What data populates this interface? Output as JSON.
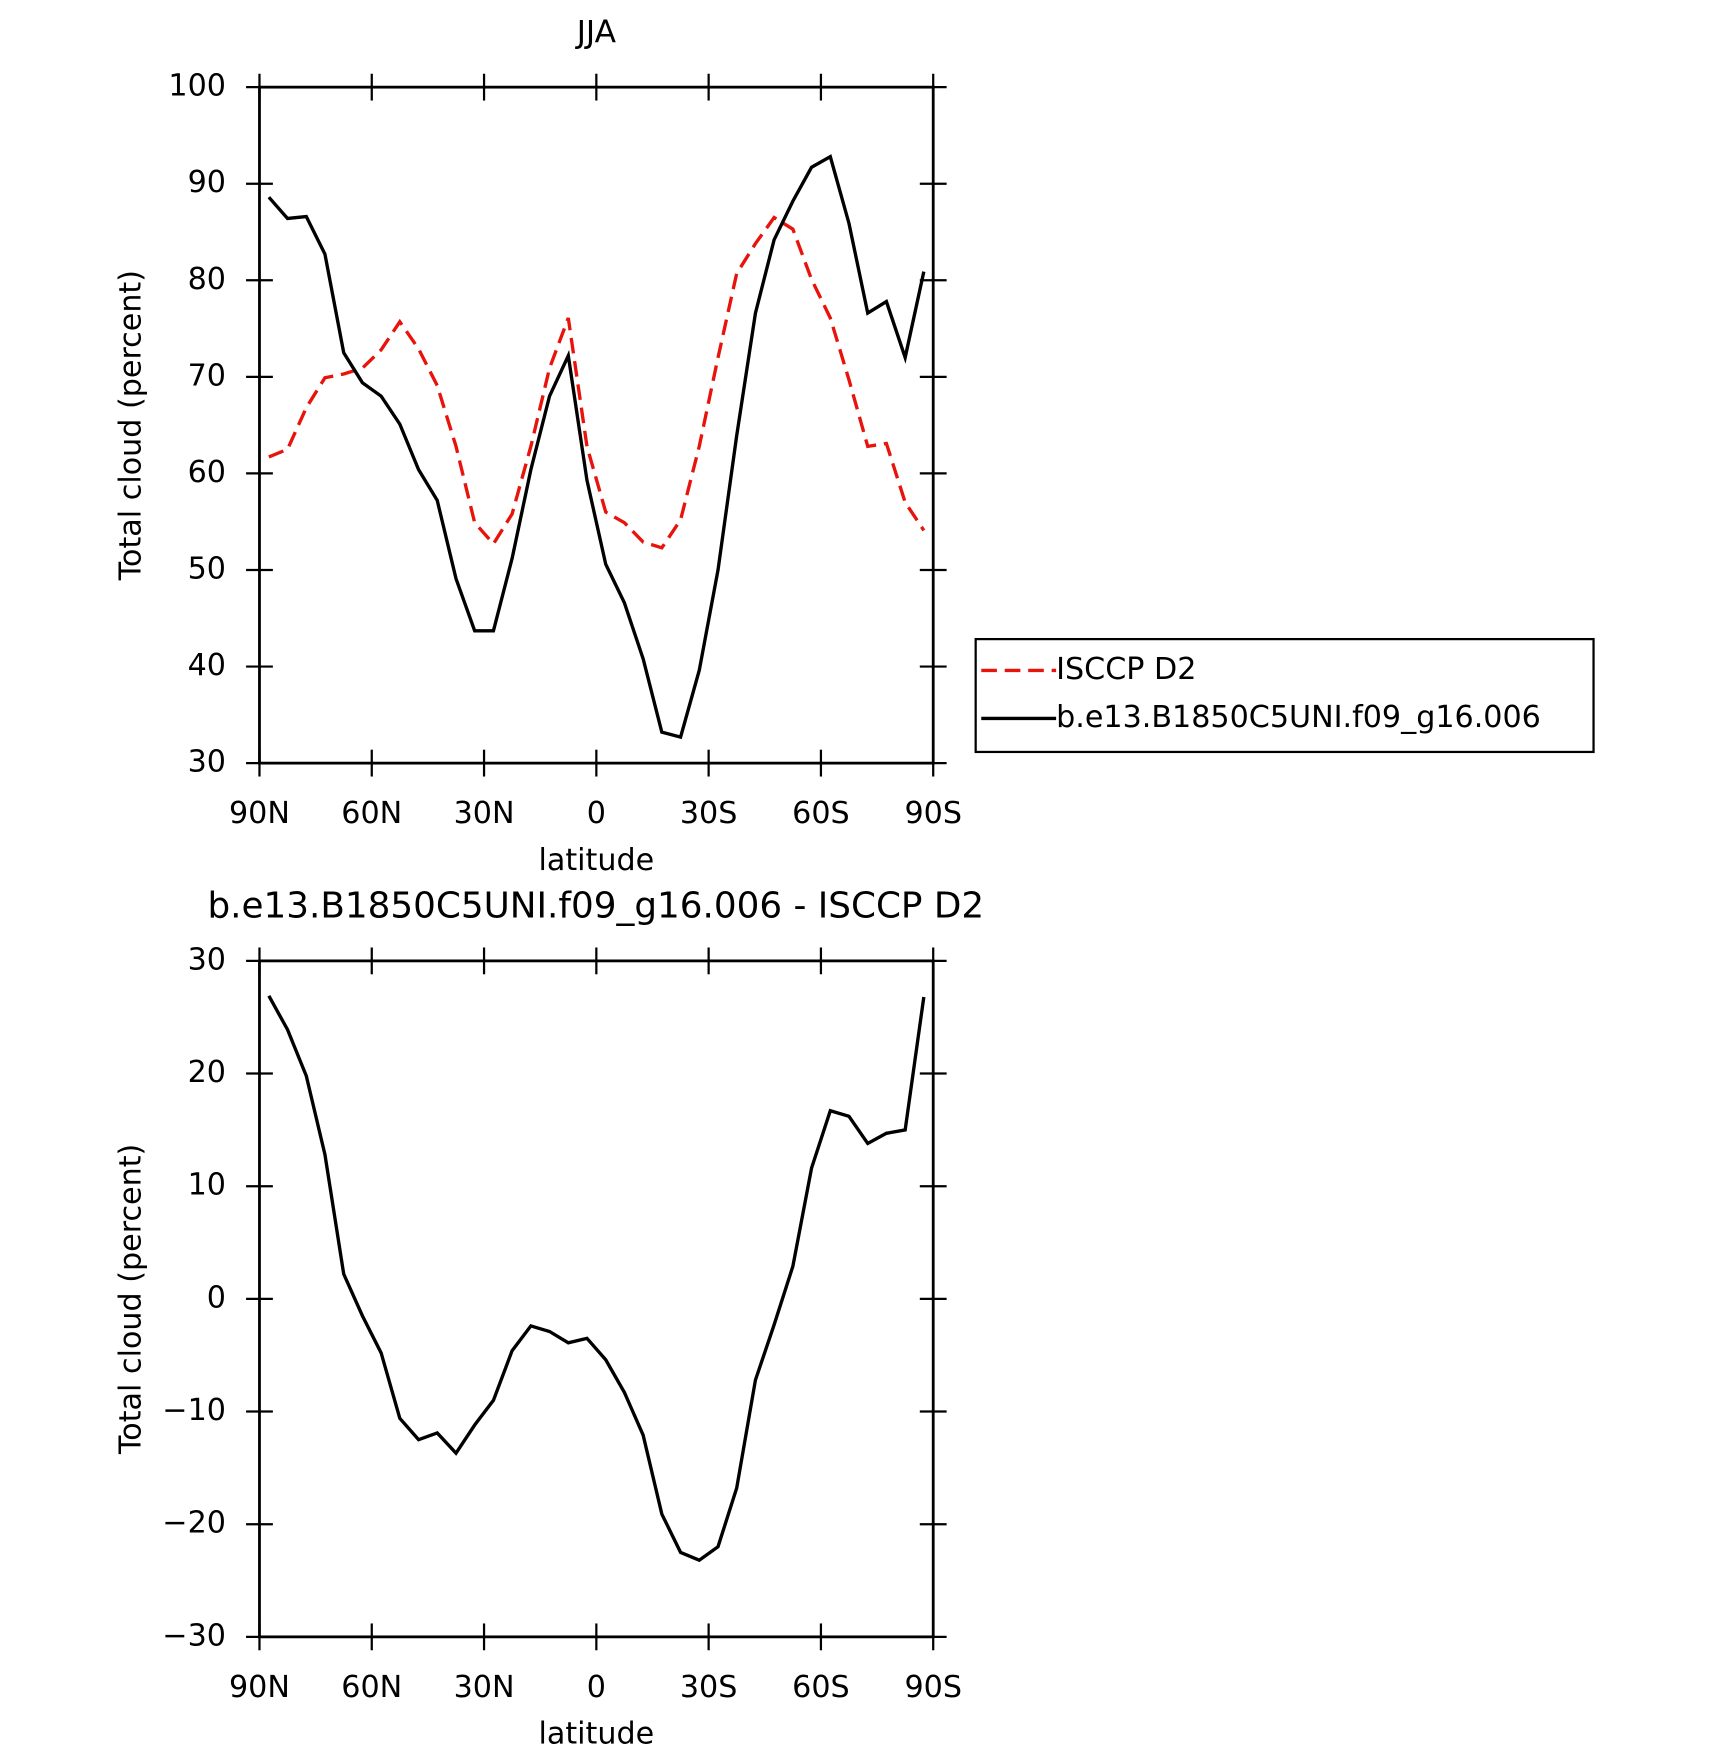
{
  "chart_data": [
    {
      "type": "line",
      "title": "JJA",
      "xlabel": "latitude",
      "ylabel": "Total cloud (percent)",
      "x": [
        87.5,
        82.5,
        77.5,
        72.5,
        67.5,
        62.5,
        57.5,
        52.5,
        47.5,
        42.5,
        37.5,
        32.5,
        27.5,
        22.5,
        17.5,
        12.5,
        7.5,
        2.5,
        -2.5,
        -7.5,
        -12.5,
        -17.5,
        -22.5,
        -27.5,
        -32.5,
        -37.5,
        -42.5,
        -47.5,
        -52.5,
        -57.5,
        -62.5,
        -67.5,
        -72.5,
        -77.5,
        -82.5,
        -87.5
      ],
      "xlim": [
        90,
        -90
      ],
      "xticks": [
        {
          "value": 90,
          "label": "90N"
        },
        {
          "value": 60,
          "label": "60N"
        },
        {
          "value": 30,
          "label": "30N"
        },
        0,
        {
          "value": -30,
          "label": "30S"
        },
        {
          "value": -60,
          "label": "60S"
        },
        {
          "value": -90,
          "label": "90S"
        }
      ],
      "ylim": [
        30,
        100
      ],
      "yticks": [
        30,
        40,
        50,
        60,
        70,
        80,
        90,
        100
      ],
      "legend": "right",
      "series": [
        {
          "name": "ISCCP D2",
          "color": "#e8140c",
          "dash": "dashed",
          "values": [
            61.7,
            62.5,
            66.8,
            69.9,
            70.3,
            70.9,
            72.8,
            75.7,
            72.9,
            69.1,
            62.8,
            54.9,
            52.7,
            55.8,
            62.8,
            70.9,
            76.1,
            62.8,
            56.0,
            54.9,
            52.9,
            52.3,
            55.2,
            62.8,
            72.0,
            80.7,
            83.8,
            86.5,
            85.3,
            80.1,
            76.1,
            69.7,
            62.8,
            63.1,
            57.0,
            54.1
          ]
        },
        {
          "name": "b.e13.B1850C5UNI.f09_g16.006",
          "color": "#000000",
          "dash": "solid",
          "values": [
            88.6,
            86.4,
            86.6,
            82.7,
            72.5,
            69.4,
            68.0,
            65.1,
            60.4,
            57.2,
            49.1,
            43.7,
            43.7,
            51.2,
            60.4,
            68.0,
            72.2,
            59.3,
            50.6,
            46.6,
            40.8,
            33.2,
            32.7,
            39.6,
            50.0,
            63.9,
            76.6,
            84.2,
            88.2,
            91.7,
            92.8,
            85.9,
            76.6,
            77.8,
            72.0,
            80.9
          ]
        }
      ]
    },
    {
      "type": "line",
      "title": "b.e13.B1850C5UNI.f09_g16.006 - ISCCP D2",
      "xlabel": "latitude",
      "ylabel": "Total cloud (percent)",
      "x": [
        87.5,
        82.5,
        77.5,
        72.5,
        67.5,
        62.5,
        57.5,
        52.5,
        47.5,
        42.5,
        37.5,
        32.5,
        27.5,
        22.5,
        17.5,
        12.5,
        7.5,
        2.5,
        -2.5,
        -7.5,
        -12.5,
        -17.5,
        -22.5,
        -27.5,
        -32.5,
        -37.5,
        -42.5,
        -47.5,
        -52.5,
        -57.5,
        -62.5,
        -67.5,
        -72.5,
        -77.5,
        -82.5,
        -87.5
      ],
      "xlim": [
        90,
        -90
      ],
      "xticks": [
        {
          "value": 90,
          "label": "90N"
        },
        {
          "value": 60,
          "label": "60N"
        },
        {
          "value": 30,
          "label": "30N"
        },
        0,
        {
          "value": -30,
          "label": "30S"
        },
        {
          "value": -60,
          "label": "60S"
        },
        {
          "value": -90,
          "label": "90S"
        }
      ],
      "ylim": [
        -30,
        30
      ],
      "yticks": [
        {
          "value": -30,
          "label": "−30"
        },
        {
          "value": -20,
          "label": "−20"
        },
        {
          "value": -10,
          "label": "−10"
        },
        0,
        10,
        20,
        30
      ],
      "series": [
        {
          "color": "#000000",
          "dash": "solid",
          "values": [
            26.9,
            23.9,
            19.8,
            12.8,
            2.2,
            -1.5,
            -4.8,
            -10.6,
            -12.5,
            -11.9,
            -13.7,
            -11.2,
            -9.0,
            -4.6,
            -2.4,
            -2.9,
            -3.9,
            -3.5,
            -5.4,
            -8.3,
            -12.1,
            -19.1,
            -22.5,
            -23.2,
            -22.0,
            -16.8,
            -7.2,
            -2.3,
            2.9,
            11.6,
            16.7,
            16.2,
            13.8,
            14.7,
            15.0,
            26.8
          ]
        }
      ]
    }
  ]
}
